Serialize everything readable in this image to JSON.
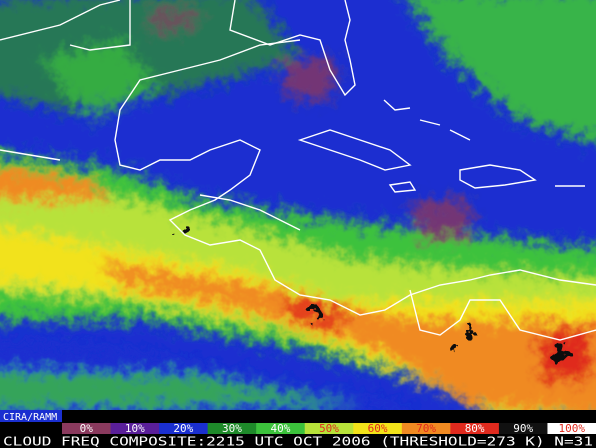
{
  "credit": "CIRA/RAMM",
  "legend": [
    {
      "label": "0%",
      "color": "#8a3a5e"
    },
    {
      "label": "10%",
      "color": "#5a1f9a"
    },
    {
      "label": "20%",
      "color": "#1a2fd0"
    },
    {
      "label": "30%",
      "color": "#1e8a2a"
    },
    {
      "label": "40%",
      "color": "#3cc23c"
    },
    {
      "label": "50%",
      "color": "#b8e23a"
    },
    {
      "label": "60%",
      "color": "#f2e21a"
    },
    {
      "label": "70%",
      "color": "#f08a22"
    },
    {
      "label": "80%",
      "color": "#e02a1e"
    },
    {
      "label": "90%",
      "color": "#111111"
    },
    {
      "label": "100%",
      "color": "#ffffff"
    }
  ],
  "caption": "CLOUD FREQ COMPOSITE:2215 UTC OCT 2006 (THRESHOLD=273 K) N=31"
}
